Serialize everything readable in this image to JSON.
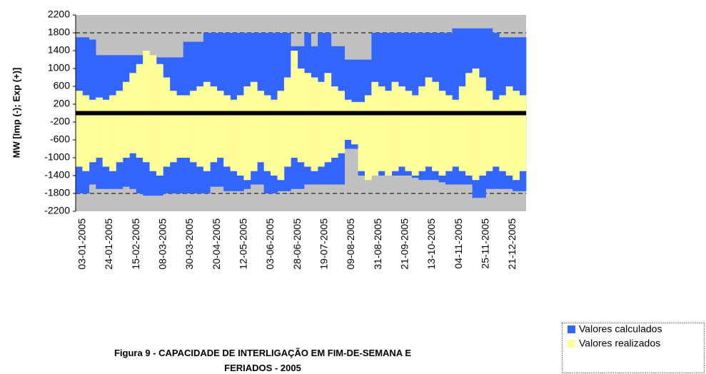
{
  "chart_data": {
    "type": "range_bar",
    "title_lines": [
      "Figura 9 - CAPACIDADE DE INTERLIGAÇÃO EM FIM-DE-SEMANA E",
      "FERIADOS - 2005"
    ],
    "y_label": "MW [Imp (-); Exp (+)]",
    "ylim": [
      -2200,
      2200
    ],
    "yticks": [
      2200,
      1800,
      1400,
      1000,
      600,
      200,
      -200,
      -600,
      -1000,
      -1400,
      -1800,
      -2200
    ],
    "reference_lines": [
      1800,
      -1800
    ],
    "background": "#c0c0c0",
    "categories": [
      "03-01-2005",
      null,
      null,
      null,
      "24-01-2005",
      null,
      null,
      null,
      "15-02-2005",
      null,
      null,
      null,
      "08-03-2005",
      null,
      null,
      null,
      "30-03-2005",
      null,
      null,
      null,
      "20-04-2005",
      null,
      null,
      null,
      "12-05-2005",
      null,
      null,
      null,
      "03-06-2005",
      null,
      null,
      null,
      "28-06-2005",
      null,
      null,
      null,
      "19-07-2005",
      null,
      null,
      null,
      "09-08-2005",
      null,
      null,
      null,
      "31-08-2005",
      null,
      null,
      null,
      "21-09-2005",
      null,
      null,
      null,
      "13-10-2005",
      null,
      null,
      null,
      "04-11-2005",
      null,
      null,
      null,
      "25-11-2005",
      null,
      null,
      null,
      "21-12-2005",
      null,
      null
    ],
    "series": [
      {
        "name": "Valores calculados",
        "color": "#3366ff",
        "values": [
          1700,
          1700,
          1650,
          1300,
          1300,
          1300,
          1300,
          1300,
          1300,
          1300,
          1300,
          1300,
          1250,
          1250,
          1250,
          1250,
          1600,
          1600,
          1600,
          1800,
          1800,
          1800,
          1800,
          1800,
          1800,
          1800,
          1800,
          1800,
          1800,
          1800,
          1800,
          1800,
          1500,
          1500,
          1800,
          1500,
          1800,
          1800,
          1500,
          1500,
          1200,
          1200,
          1200,
          1200,
          1800,
          1800,
          1800,
          1800,
          1800,
          1800,
          1800,
          1800,
          1800,
          1800,
          1800,
          1800,
          1900,
          1900,
          1900,
          1900,
          1900,
          1900,
          1800,
          1700,
          1700,
          1700,
          1700
        ],
        "lower_values": [
          -1800,
          -1800,
          -1600,
          -1700,
          -1700,
          -1700,
          -1700,
          -1650,
          -1700,
          -1800,
          -1850,
          -1850,
          -1850,
          -1800,
          -1800,
          -1800,
          -1800,
          -1800,
          -1800,
          -1800,
          -1650,
          -1650,
          -1750,
          -1750,
          -1750,
          -1700,
          -1600,
          -1600,
          -1800,
          -1800,
          -1750,
          -1750,
          -1700,
          -1700,
          -1600,
          -1600,
          -1600,
          -1600,
          -1600,
          -1600,
          -800,
          -800,
          -1400,
          -1400,
          -1400,
          -1400,
          -1400,
          -1400,
          -1400,
          -1400,
          -1450,
          -1500,
          -1500,
          -1500,
          -1550,
          -1600,
          -1600,
          -1600,
          -1600,
          -1900,
          -1900,
          -1700,
          -1700,
          -1700,
          -1700,
          -1750,
          -1750
        ]
      },
      {
        "name": "Valores realizados",
        "color": "#ffff99",
        "values": [
          500,
          400,
          300,
          350,
          300,
          400,
          500,
          700,
          900,
          1100,
          1400,
          1300,
          1100,
          800,
          500,
          400,
          400,
          500,
          600,
          700,
          600,
          500,
          400,
          300,
          400,
          600,
          700,
          500,
          400,
          300,
          500,
          800,
          1400,
          1000,
          900,
          800,
          700,
          900,
          600,
          500,
          300,
          250,
          250,
          400,
          700,
          600,
          500,
          700,
          600,
          500,
          400,
          600,
          800,
          700,
          500,
          400,
          300,
          600,
          900,
          1000,
          800,
          500,
          300,
          400,
          600,
          500,
          400
        ],
        "lower_values": [
          -1200,
          -1300,
          -1100,
          -1000,
          -1200,
          -1300,
          -1100,
          -1000,
          -900,
          -1000,
          -1100,
          -1300,
          -1400,
          -1200,
          -1100,
          -1000,
          -1000,
          -1100,
          -1200,
          -1300,
          -1100,
          -1000,
          -1200,
          -1300,
          -1400,
          -1500,
          -1300,
          -1100,
          -1300,
          -1400,
          -1500,
          -1200,
          -1000,
          -1100,
          -1200,
          -1300,
          -1200,
          -1100,
          -1000,
          -900,
          -600,
          -700,
          -1300,
          -1500,
          -1400,
          -1300,
          -1400,
          -1300,
          -1200,
          -1300,
          -1400,
          -1300,
          -1200,
          -1300,
          -1400,
          -1300,
          -1200,
          -1300,
          -1400,
          -1500,
          -1400,
          -1300,
          -1200,
          -1300,
          -1400,
          -1500,
          -1300
        ]
      }
    ]
  }
}
